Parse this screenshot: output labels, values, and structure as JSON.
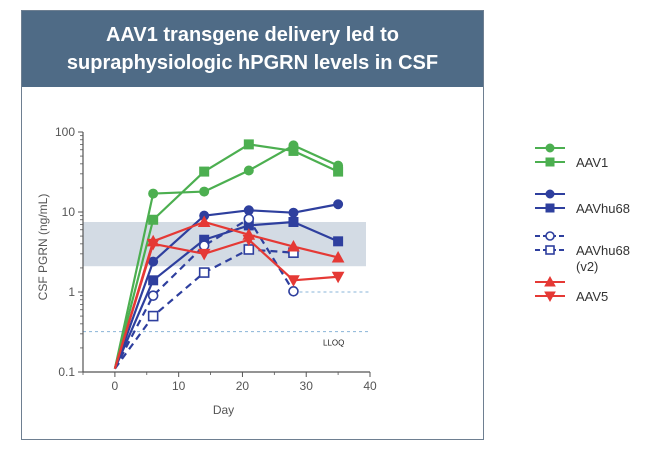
{
  "chart_data": {
    "type": "line",
    "title": [
      "AAV1 transgene delivery led to",
      "supraphysiologic hPGRN levels in CSF"
    ],
    "xlabel": "Day",
    "ylabel": "CSF PGRN (ng/mL)",
    "xlim": [
      -5,
      40
    ],
    "ylim": [
      0.1,
      100
    ],
    "yscale": "log",
    "xticks": [
      0,
      10,
      20,
      30,
      40
    ],
    "yticks": [
      {
        "v": 100,
        "label": "100"
      },
      {
        "v": 10,
        "label": "10"
      },
      {
        "v": 1,
        "label": "1"
      },
      {
        "v": 0.1,
        "label": "0.1"
      }
    ],
    "reference_band": {
      "y_low": 2.1,
      "y_high": 7.5
    },
    "lloq": {
      "value": 0.32,
      "label": "LLOQ"
    },
    "series": [
      {
        "name": "AAV1",
        "legend": "AAV1",
        "color": "#4caf50",
        "marker": "circle",
        "filled": true,
        "dash": false,
        "x": [
          0,
          6,
          14,
          21,
          28,
          35
        ],
        "y": [
          0.11,
          17,
          18,
          33,
          68,
          38
        ]
      },
      {
        "name": "AAV1 (square)",
        "legend": "",
        "color": "#4caf50",
        "marker": "square",
        "filled": true,
        "dash": false,
        "x": [
          0,
          6,
          14,
          21,
          28,
          35
        ],
        "y": [
          0.11,
          8,
          32,
          70,
          58,
          32
        ]
      },
      {
        "name": "AAVhu68",
        "legend": "AAVhu68",
        "color": "#2e3f9e",
        "marker": "circle",
        "filled": true,
        "dash": false,
        "x": [
          0,
          6,
          14,
          21,
          28,
          35
        ],
        "y": [
          0.11,
          2.4,
          9,
          10.5,
          9.8,
          12.5
        ]
      },
      {
        "name": "AAVhu68 (square)",
        "legend": "",
        "color": "#2e3f9e",
        "marker": "square",
        "filled": true,
        "dash": false,
        "x": [
          0,
          6,
          14,
          21,
          28,
          35
        ],
        "y": [
          0.11,
          1.4,
          4.5,
          6.8,
          7.5,
          4.3
        ]
      },
      {
        "name": "AAVhu68 (v2)",
        "legend": "AAVhu68\n(v2)",
        "color": "#2e3f9e",
        "marker": "circle",
        "filled": false,
        "dash": true,
        "x": [
          0,
          6,
          14,
          21,
          28
        ],
        "y": [
          0.11,
          0.9,
          3.8,
          8.2,
          1.02
        ]
      },
      {
        "name": "AAVhu68 (v2, square)",
        "legend": "",
        "color": "#2e3f9e",
        "marker": "square",
        "filled": false,
        "dash": true,
        "x": [
          0,
          6,
          14,
          21,
          28
        ],
        "y": [
          0.11,
          0.5,
          1.75,
          3.4,
          3.1
        ]
      },
      {
        "name": "AAV5",
        "legend": "AAV5",
        "color": "#e53935",
        "marker": "triangle-up",
        "filled": true,
        "dash": false,
        "x": [
          0,
          6,
          14,
          21,
          28,
          35
        ],
        "y": [
          0.11,
          4.3,
          7.5,
          5.2,
          3.7,
          2.7
        ]
      },
      {
        "name": "AAV5 (down)",
        "legend": "",
        "color": "#e53935",
        "marker": "triangle-down",
        "filled": true,
        "dash": false,
        "x": [
          0,
          6,
          14,
          21,
          28,
          35
        ],
        "y": [
          0.11,
          4.0,
          3.0,
          4.5,
          1.4,
          1.55
        ]
      }
    ],
    "legend_entries": [
      {
        "label": "AAV1",
        "color": "#4caf50",
        "markers": [
          "circle",
          "square"
        ],
        "filled": true,
        "dash": false
      },
      {
        "label": "AAVhu68",
        "color": "#2e3f9e",
        "markers": [
          "circle",
          "square"
        ],
        "filled": true,
        "dash": false
      },
      {
        "label": "AAVhu68\n(v2)",
        "color": "#2e3f9e",
        "markers": [
          "circle",
          "square"
        ],
        "filled": false,
        "dash": true
      },
      {
        "label": "AAV5",
        "color": "#e53935",
        "markers": [
          "triangle-up",
          "triangle-down"
        ],
        "filled": true,
        "dash": false
      }
    ]
  },
  "colors": {
    "title_bg": "#4f6b86",
    "band": "#d3dbe4",
    "lloq": "#8ab4d8",
    "axis": "#555555"
  }
}
